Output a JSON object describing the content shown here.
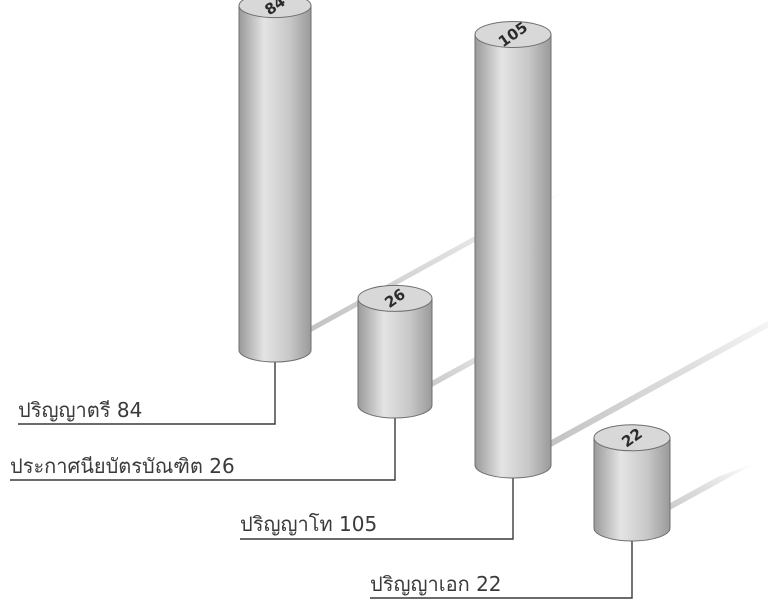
{
  "chart_data": {
    "type": "bar",
    "style": "3d-cylinder",
    "categories": [
      "ปริญญาตรี",
      "ประกาศนียบัตรบัณฑิต",
      "ปริญญาโท",
      "ปริญญาเอก"
    ],
    "values": [
      84,
      26,
      105,
      22
    ],
    "category_labels": [
      "ปริญญาตรี  84",
      "ประกาศนียบัตรบัณฑิต  26",
      "ปริญญาโท  105",
      "ปริญญาเอก  22"
    ],
    "value_labels": [
      "84",
      "26",
      "105",
      "22"
    ],
    "title": "",
    "xlabel": "",
    "ylabel": "",
    "grid": false,
    "legend": "none",
    "colors": {
      "cylinder": "#c8c8c8",
      "cylinder_light": "#e4e4e4",
      "cylinder_dark": "#9a9a9a",
      "cap": "#d8d8d8",
      "shadow": "#b9b9b9",
      "leader": "#3a3a3a"
    }
  }
}
